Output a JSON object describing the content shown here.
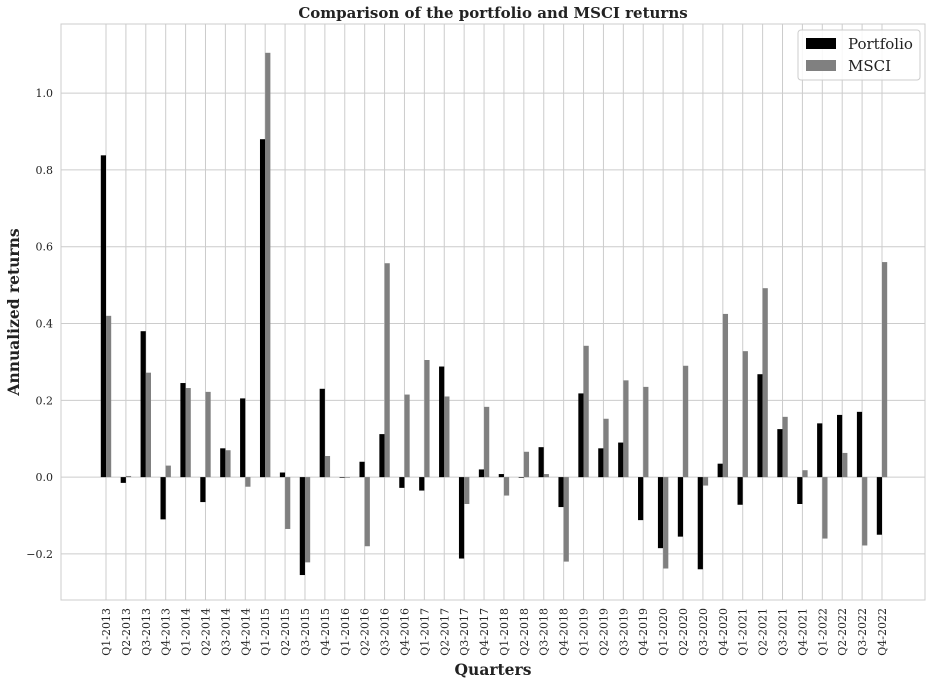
{
  "chart_data": {
    "type": "bar",
    "title": "Comparison of the portfolio and MSCI returns",
    "xlabel": "Quarters",
    "ylabel": "Annualized returns",
    "ylim": [
      -0.32,
      1.18
    ],
    "yticks": [
      "−0.2",
      "0.0",
      "0.2",
      "0.4",
      "0.6",
      "0.8",
      "1.0"
    ],
    "ytick_values": [
      -0.2,
      0.0,
      0.2,
      0.4,
      0.6,
      0.8,
      1.0
    ],
    "grid": true,
    "legend_position": "top-right",
    "categories": [
      "Q1-2013",
      "Q2-2013",
      "Q3-2013",
      "Q4-2013",
      "Q1-2014",
      "Q2-2014",
      "Q3-2014",
      "Q4-2014",
      "Q1-2015",
      "Q2-2015",
      "Q3-2015",
      "Q4-2015",
      "Q1-2016",
      "Q2-2016",
      "Q3-2016",
      "Q4-2016",
      "Q1-2017",
      "Q2-2017",
      "Q3-2017",
      "Q4-2017",
      "Q1-2018",
      "Q2-2018",
      "Q3-2018",
      "Q4-2018",
      "Q1-2019",
      "Q2-2019",
      "Q3-2019",
      "Q4-2019",
      "Q1-2020",
      "Q2-2020",
      "Q3-2020",
      "Q4-2020",
      "Q1-2021",
      "Q2-2021",
      "Q3-2021",
      "Q4-2021",
      "Q1-2022",
      "Q2-2022",
      "Q3-2022",
      "Q4-2022"
    ],
    "series": [
      {
        "name": "Portfolio",
        "color": "#000000",
        "values": [
          0.838,
          -0.015,
          0.38,
          -0.11,
          0.245,
          -0.065,
          0.075,
          0.205,
          0.88,
          0.012,
          -0.255,
          0.23,
          0.0,
          0.04,
          0.112,
          -0.028,
          -0.035,
          0.288,
          -0.212,
          0.02,
          0.008,
          0.0,
          0.078,
          -0.078,
          0.218,
          0.075,
          0.09,
          -0.112,
          -0.185,
          -0.155,
          -0.24,
          0.035,
          -0.072,
          0.268,
          0.125,
          -0.07,
          0.14,
          0.162,
          0.17,
          -0.15
        ]
      },
      {
        "name": "MSCI",
        "color": "#808080",
        "values": [
          0.42,
          0.003,
          0.272,
          0.03,
          0.232,
          0.222,
          0.07,
          -0.025,
          1.105,
          -0.135,
          -0.222,
          0.055,
          0.0,
          -0.18,
          0.557,
          0.215,
          0.305,
          0.21,
          -0.07,
          0.183,
          -0.048,
          0.066,
          0.008,
          -0.22,
          0.342,
          0.152,
          0.252,
          0.235,
          -0.238,
          0.29,
          -0.022,
          0.425,
          0.328,
          0.492,
          0.157,
          0.018,
          -0.16,
          0.063,
          -0.178,
          0.56
        ]
      }
    ]
  }
}
